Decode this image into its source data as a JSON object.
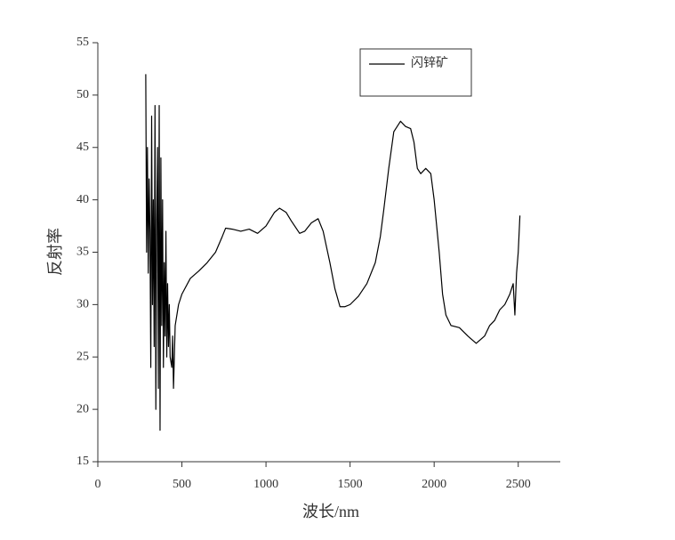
{
  "chart_data": {
    "type": "line",
    "xlabel": "波长/nm",
    "ylabel": "反射率",
    "xlim": [
      0,
      2750
    ],
    "xticks": [
      0,
      500,
      1000,
      1500,
      2000,
      2500
    ],
    "ylim": [
      15,
      55
    ],
    "yticks": [
      15,
      20,
      25,
      30,
      35,
      40,
      45,
      50,
      55
    ],
    "legend": "top",
    "x": [
      285,
      290,
      295,
      300,
      305,
      310,
      315,
      320,
      325,
      330,
      335,
      340,
      345,
      350,
      355,
      360,
      365,
      370,
      375,
      380,
      385,
      390,
      395,
      400,
      405,
      410,
      415,
      420,
      425,
      430,
      440,
      445,
      450,
      460,
      480,
      500,
      550,
      600,
      650,
      700,
      740,
      760,
      800,
      850,
      900,
      950,
      1000,
      1050,
      1080,
      1120,
      1150,
      1200,
      1230,
      1270,
      1310,
      1340,
      1380,
      1410,
      1440,
      1470,
      1500,
      1550,
      1600,
      1650,
      1680,
      1700,
      1730,
      1760,
      1800,
      1830,
      1860,
      1880,
      1900,
      1920,
      1950,
      1980,
      2000,
      2030,
      2050,
      2070,
      2100,
      2150,
      2200,
      2250,
      2300,
      2330,
      2360,
      2390,
      2420,
      2450,
      2470,
      2480,
      2490,
      2500,
      2510
    ],
    "series": [
      {
        "name": "闪锌矿",
        "color": "#000000",
        "values": [
          52,
          35,
          45,
          33,
          42,
          37,
          24,
          48,
          30,
          40,
          26,
          49,
          20,
          38,
          45,
          22,
          49,
          18,
          44,
          28,
          40,
          24,
          34,
          27,
          37,
          25,
          32,
          26,
          30,
          25,
          24,
          27,
          22,
          28,
          30,
          31,
          32.5,
          33.2,
          34,
          35,
          36.5,
          37.3,
          37.2,
          37,
          37.2,
          36.8,
          37.5,
          38.8,
          39.2,
          38.8,
          38,
          36.8,
          37,
          37.8,
          38.2,
          37,
          34,
          31.5,
          29.8,
          29.8,
          30,
          30.8,
          32,
          34,
          36.5,
          39,
          43,
          46.5,
          47.5,
          47,
          46.8,
          45.5,
          43,
          42.5,
          43,
          42.5,
          40,
          35,
          31,
          29,
          28,
          27.8,
          27,
          26.3,
          27,
          28,
          28.5,
          29.5,
          30,
          31,
          32,
          29,
          33,
          35,
          38.5
        ]
      }
    ]
  }
}
